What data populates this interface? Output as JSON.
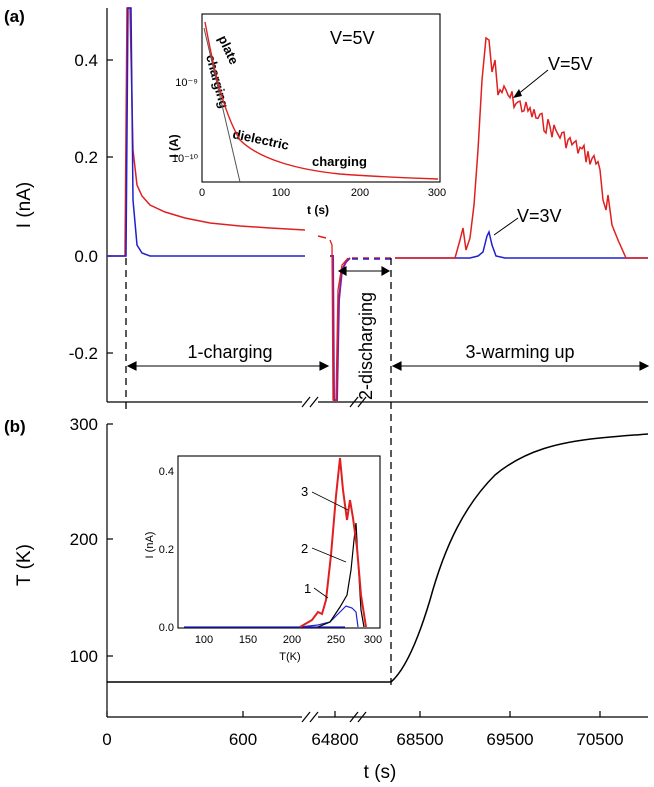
{
  "panel_a": {
    "label": "(a)",
    "ylabel": "I (nA)",
    "yticks": [
      "0.4",
      "0.2",
      "0.0",
      "-0.2"
    ],
    "annotations": {
      "v5": "V=5V",
      "v3": "V=3V",
      "charging": "1-charging",
      "discharging": "2-discharging",
      "warming": "3-warming up"
    },
    "inset": {
      "ylabel": "I (A)",
      "xlabel": "t (s)",
      "xticks": [
        "0",
        "100",
        "200",
        "300"
      ],
      "yticks": [
        "10⁻⁹",
        "10⁻¹⁰"
      ],
      "title": "V=5V",
      "plate": "plate",
      "plate2": "charging",
      "dielectric": "dielectric",
      "charging": "charging"
    }
  },
  "panel_b": {
    "label": "(b)",
    "ylabel": "T (K)",
    "yticks": [
      "300",
      "200",
      "100"
    ],
    "xlabel": "t (s)",
    "xticks": [
      "0",
      "600",
      "64800",
      "68500",
      "69500",
      "70500"
    ],
    "inset": {
      "ylabel": "I (nA)",
      "xlabel": "T(K)",
      "xticks": [
        "100",
        "150",
        "200",
        "250",
        "300"
      ],
      "yticks": [
        "0.4",
        "0.2",
        "0.0"
      ],
      "curve_labels": [
        "1",
        "2",
        "3"
      ]
    }
  },
  "colors": {
    "red": "#e02020",
    "blue": "#2020cc",
    "black": "#000000",
    "purple": "#8020a0"
  },
  "chart_data": [
    {
      "type": "line",
      "panel": "a",
      "ylim": [
        -0.3,
        0.5
      ],
      "series": [
        {
          "name": "V=5V",
          "color": "red",
          "charging_decay": [
            [
              0,
              0.5
            ],
            [
              10,
              0.12
            ],
            [
              40,
              0.09
            ],
            [
              100,
              0.07
            ],
            [
              200,
              0.055
            ]
          ],
          "warming_peak_x_fraction": 0.27,
          "warming_peak_value": 0.45
        },
        {
          "name": "V=3V",
          "color": "blue",
          "charging_decay": [
            [
              0,
              0.5
            ],
            [
              5,
              0.02
            ],
            [
              20,
              0.0
            ]
          ],
          "warming_peak_value": 0.04
        }
      ]
    },
    {
      "type": "line",
      "panel": "a-inset",
      "xlim": [
        0,
        300
      ],
      "x": [
        5,
        20,
        40,
        60,
        100,
        150,
        200,
        250,
        300
      ],
      "series": [
        {
          "values_log10": [
            -8.7,
            -9.2,
            -9.6,
            -9.8,
            -9.93,
            -10.0,
            -10.05,
            -10.08,
            -10.1
          ]
        }
      ]
    },
    {
      "type": "line",
      "panel": "b",
      "ylim": [
        50,
        300
      ],
      "x_segments": [
        "0-600",
        "64800",
        "68500-70500"
      ],
      "series": [
        {
          "points": [
            [
              68180,
              78
            ],
            [
              68500,
              140
            ],
            [
              68800,
              210
            ],
            [
              69200,
              255
            ],
            [
              69700,
              278
            ],
            [
              70200,
              286
            ],
            [
              70700,
              290
            ]
          ]
        }
      ]
    },
    {
      "type": "line",
      "panel": "b-inset",
      "xlim": [
        70,
        300
      ],
      "ylim": [
        0,
        0.45
      ],
      "series": [
        {
          "name": "1",
          "color": "blue",
          "points": [
            [
              80,
              0
            ],
            [
              230,
              0.005
            ],
            [
              260,
              0.01
            ],
            [
              275,
              0.04
            ],
            [
              285,
              0.05
            ],
            [
              290,
              0
            ]
          ]
        },
        {
          "name": "2",
          "color": "black",
          "points": [
            [
              200,
              0
            ],
            [
              250,
              0.005
            ],
            [
              262,
              0.03
            ],
            [
              270,
              0.12
            ],
            [
              278,
              0.28
            ],
            [
              285,
              0.1
            ],
            [
              290,
              0
            ]
          ]
        },
        {
          "name": "3",
          "color": "red",
          "points": [
            [
              200,
              0
            ],
            [
              240,
              0.03
            ],
            [
              250,
              0.04
            ],
            [
              260,
              0.44
            ],
            [
              265,
              0.25
            ],
            [
              272,
              0.35
            ],
            [
              280,
              0.2
            ],
            [
              290,
              0
            ]
          ]
        }
      ]
    }
  ]
}
